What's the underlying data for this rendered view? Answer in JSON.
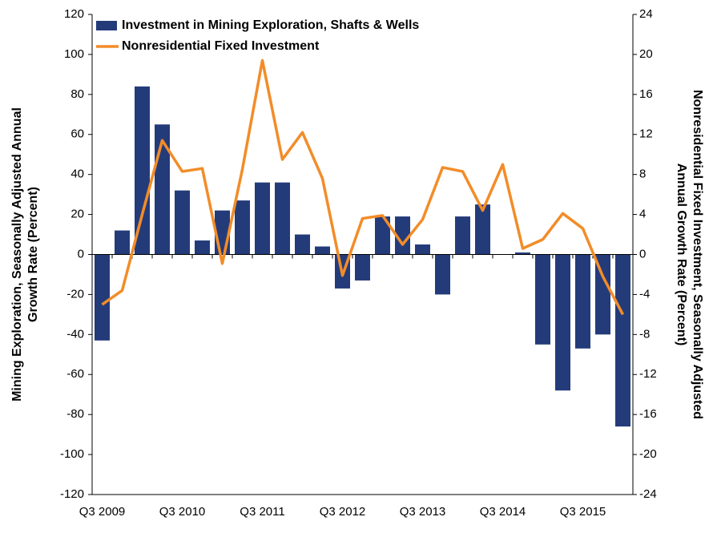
{
  "chart_data": {
    "type": "bar_line",
    "y_label": [
      "Mining Exploration, Seasonally Adjusted Annual",
      "Growth Rate (Percent)"
    ],
    "y2_label": [
      "Nonresidential Fixed Investment, Seasonally Adjusted",
      "Annual Growth Rate (Percent)"
    ],
    "categories": [
      "Q3 2009",
      null,
      null,
      null,
      "Q3 2010",
      null,
      null,
      null,
      "Q3 2011",
      null,
      null,
      null,
      "Q3 2012",
      null,
      null,
      null,
      "Q3 2013",
      null,
      null,
      null,
      "Q3 2014",
      null,
      null,
      null,
      "Q3 2015",
      null,
      null
    ],
    "series": [
      {
        "name": "Investment in Mining Exploration, Shafts & Wells",
        "type": "bar",
        "color": "#243b7a",
        "values": [
          -43,
          12,
          84,
          65,
          32,
          7,
          22,
          27,
          36,
          36,
          10,
          4,
          -17,
          -13,
          19,
          19,
          5,
          -20,
          19,
          25,
          0,
          1,
          -45,
          -68,
          -47,
          -40,
          -86
        ]
      },
      {
        "name": "Nonresidential Fixed Investment",
        "type": "line",
        "axis": "y2",
        "color": "#f28c28",
        "values": [
          -5,
          -3.6,
          4,
          11.4,
          8.3,
          8.6,
          -0.9,
          8.5,
          19.4,
          9.5,
          12.2,
          7.6,
          -2.1,
          3.6,
          3.9,
          1,
          3.5,
          8.7,
          8.3,
          4.4,
          9,
          0.6,
          1.5,
          4.1,
          2.6,
          -2.2,
          -6
        ]
      }
    ],
    "ylim": [
      -120,
      120
    ],
    "yticks": [
      -120,
      -100,
      -80,
      -60,
      -40,
      -20,
      0,
      20,
      40,
      60,
      80,
      100,
      120
    ],
    "y2lim": [
      -24,
      24
    ],
    "y2ticks": [
      -24,
      -20,
      -16,
      -12,
      -8,
      -4,
      0,
      4,
      8,
      12,
      16,
      20,
      24
    ],
    "legend": "upper left",
    "grid": false
  }
}
